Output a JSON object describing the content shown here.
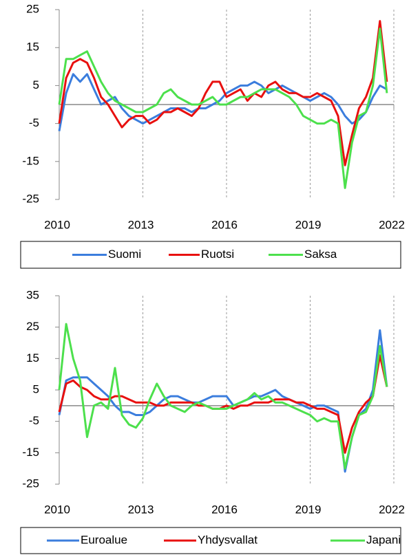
{
  "chart_data": [
    {
      "type": "line",
      "x": [
        2010,
        2010.25,
        2010.5,
        2010.75,
        2011,
        2011.25,
        2011.5,
        2011.75,
        2012,
        2012.25,
        2012.5,
        2012.75,
        2013,
        2013.25,
        2013.5,
        2013.75,
        2014,
        2014.25,
        2014.5,
        2014.75,
        2015,
        2015.25,
        2015.5,
        2015.75,
        2016,
        2016.25,
        2016.5,
        2016.75,
        2017,
        2017.25,
        2017.5,
        2017.75,
        2018,
        2018.25,
        2018.5,
        2018.75,
        2019,
        2019.25,
        2019.5,
        2019.75,
        2020,
        2020.25,
        2020.5,
        2020.75,
        2021,
        2021.25,
        2021.5,
        2021.75
      ],
      "series": [
        {
          "name": "Suomi",
          "color": "#3b7ddd",
          "values": [
            -7,
            3,
            8,
            6,
            8,
            4,
            0,
            1,
            2,
            -1,
            -3,
            -4,
            -5,
            -4,
            -3,
            -2,
            -1,
            -1,
            -1,
            -2,
            -1,
            -1,
            0,
            1,
            3,
            4,
            5,
            5,
            6,
            5,
            3,
            4,
            5,
            4,
            3,
            2,
            1,
            2,
            3,
            2,
            0,
            -3,
            -5,
            -4,
            -2,
            2,
            5,
            4
          ]
        },
        {
          "name": "Ruotsi",
          "color": "#e8100f",
          "values": [
            -5,
            7,
            11,
            12,
            11,
            7,
            2,
            0,
            -3,
            -6,
            -4,
            -3,
            -3,
            -5,
            -4,
            -2,
            -2,
            -1,
            -2,
            -3,
            -1,
            3,
            6,
            6,
            2,
            3,
            4,
            1,
            3,
            2,
            5,
            6,
            4,
            3,
            3,
            2,
            2,
            3,
            2,
            1,
            -3,
            -16,
            -8,
            -1,
            2,
            7,
            22,
            6
          ]
        },
        {
          "name": "Saksa",
          "color": "#4ce04c",
          "values": [
            0,
            12,
            12,
            13,
            14,
            10,
            6,
            3,
            1,
            0,
            -1,
            -2,
            -2,
            -1,
            0,
            3,
            4,
            2,
            1,
            0,
            0,
            1,
            2,
            0,
            0,
            1,
            2,
            2,
            3,
            4,
            4,
            4,
            3,
            2,
            0,
            -3,
            -4,
            -5,
            -5,
            -4,
            -5,
            -22,
            -10,
            -3,
            -2,
            5,
            20,
            3
          ]
        }
      ],
      "xlim": [
        2010,
        2022
      ],
      "xticks": [
        2010,
        2013,
        2016,
        2019,
        2022
      ],
      "ylim": [
        -25,
        25
      ],
      "yticks": [
        -25,
        -15,
        -5,
        5,
        15,
        25
      ],
      "grid": true
    },
    {
      "type": "line",
      "x": [
        2010,
        2010.25,
        2010.5,
        2010.75,
        2011,
        2011.25,
        2011.5,
        2011.75,
        2012,
        2012.25,
        2012.5,
        2012.75,
        2013,
        2013.25,
        2013.5,
        2013.75,
        2014,
        2014.25,
        2014.5,
        2014.75,
        2015,
        2015.25,
        2015.5,
        2015.75,
        2016,
        2016.25,
        2016.5,
        2016.75,
        2017,
        2017.25,
        2017.5,
        2017.75,
        2018,
        2018.25,
        2018.5,
        2018.75,
        2019,
        2019.25,
        2019.5,
        2019.75,
        2020,
        2020.25,
        2020.5,
        2020.75,
        2021,
        2021.25,
        2021.5,
        2021.75
      ],
      "series": [
        {
          "name": "Euroalue",
          "color": "#3b7ddd",
          "values": [
            -3,
            8,
            9,
            9,
            9,
            7,
            5,
            3,
            0,
            -2,
            -2,
            -3,
            -3,
            -2,
            0,
            2,
            3,
            3,
            2,
            1,
            1,
            2,
            3,
            3,
            3,
            0,
            1,
            2,
            3,
            3,
            4,
            5,
            3,
            2,
            1,
            0,
            -1,
            0,
            0,
            -1,
            -2,
            -21,
            -10,
            -3,
            -1,
            5,
            24,
            6
          ]
        },
        {
          "name": "Yhdysvallat",
          "color": "#e8100f",
          "values": [
            -2,
            7,
            8,
            6,
            5,
            3,
            2,
            2,
            3,
            3,
            2,
            1,
            1,
            1,
            0,
            0,
            1,
            1,
            1,
            1,
            0,
            0,
            -1,
            -1,
            0,
            -1,
            0,
            0,
            1,
            1,
            1,
            2,
            2,
            2,
            1,
            1,
            0,
            -1,
            -1,
            -2,
            -3,
            -15,
            -7,
            -2,
            1,
            3,
            16,
            6
          ]
        },
        {
          "name": "Japani",
          "color": "#4ce04c",
          "values": [
            5,
            26,
            15,
            8,
            -10,
            0,
            1,
            -1,
            12,
            -3,
            -6,
            -7,
            -4,
            2,
            7,
            3,
            0,
            -1,
            -2,
            0,
            1,
            0,
            -1,
            -1,
            -1,
            0,
            1,
            2,
            4,
            2,
            3,
            1,
            1,
            0,
            -1,
            -2,
            -3,
            -5,
            -4,
            -5,
            -5,
            -20,
            -10,
            -3,
            -2,
            3,
            19,
            6
          ]
        }
      ],
      "xlim": [
        2010,
        2022
      ],
      "xticks": [
        2010,
        2013,
        2016,
        2019,
        2022
      ],
      "ylim": [
        -25,
        35
      ],
      "yticks": [
        -25,
        -15,
        -5,
        5,
        15,
        25,
        35
      ],
      "grid": true
    }
  ]
}
